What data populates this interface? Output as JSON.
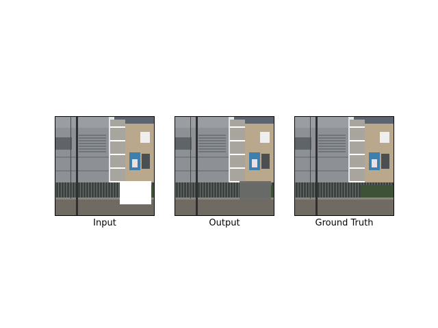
{
  "figure": {
    "panels": [
      {
        "id": "input",
        "caption": "Input",
        "masked": true,
        "filled": false
      },
      {
        "id": "output",
        "caption": "Output",
        "masked": false,
        "filled": true
      },
      {
        "id": "ground-truth",
        "caption": "Ground Truth",
        "masked": false,
        "filled": false
      }
    ],
    "colors": {
      "sky": "#e4e6ea",
      "grey_building": "#8d9196",
      "stone_building": "#b9a88c",
      "wall": "#6f6b63",
      "pole": "#2f2f2f",
      "mask": "#ffffff",
      "inpaint": "#6a6c6a",
      "banner": "#3f7fae"
    }
  }
}
